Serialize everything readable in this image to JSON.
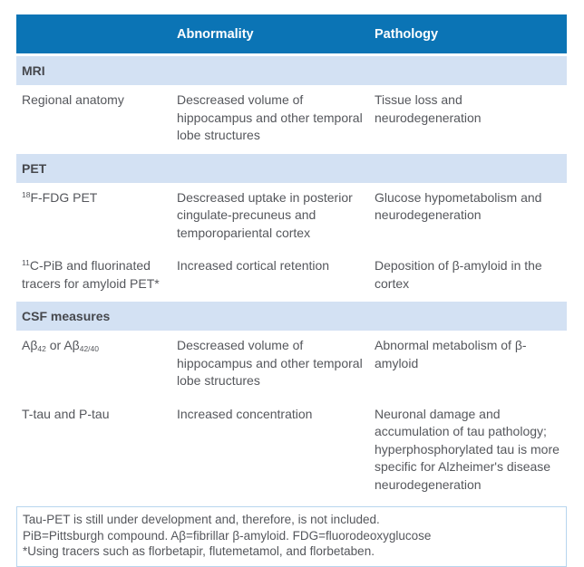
{
  "header": {
    "col_measure": "",
    "col_abnormality": "Abnormality",
    "col_pathology": "Pathology"
  },
  "sections": {
    "mri": {
      "title": "MRI"
    },
    "pet": {
      "title": "PET"
    },
    "csf": {
      "title": "CSF measures"
    }
  },
  "rows": {
    "regional": {
      "label": "Regional anatomy",
      "abnormality": "Descreased volume of hippocampus and other temporal lobe structures",
      "pathology": "Tissue loss and neurodegeneration"
    },
    "fdg": {
      "label_isotope": "18",
      "label": "F-FDG PET",
      "abnormality": "Descreased uptake in posterior cingulate-precuneus and temporopariental cortex",
      "pathology": "Glucose hypometabolism and neurodegeneration"
    },
    "pib": {
      "label_isotope": "11",
      "label": "C-PiB and fluorinated tracers for amyloid PET*",
      "abnormality": "Increased cortical retention",
      "pathology": "Deposition of β-amyloid in the cortex"
    },
    "abeta": {
      "label_parts": [
        "Aβ",
        "42",
        " or Aβ",
        "42/40"
      ],
      "abnormality": "Descreased volume of hippocampus and other temporal lobe structures",
      "pathology": "Abnormal metabolism of β-amyloid"
    },
    "tau": {
      "label": "T-tau and P-tau",
      "abnormality": "Increased concentration",
      "pathology": "Neuronal damage and accumulation of tau pathology; hyperphosphorylated tau is more specific for Alzheimer's disease neurodegeneration"
    }
  },
  "footnotes": {
    "line1": "Tau-PET is still under development and, therefore, is not included.",
    "line2": "PiB=Pittsburgh compound. Aβ=fibrillar β-amyloid. FDG=fluorodeoxyglucose",
    "line3": "*Using tracers such as florbetapir, flutemetamol, and florbetaben."
  },
  "colors": {
    "header_bar": "#0b74b5",
    "section_band": "#d3e1f3",
    "footnote_border": "#b7d5ee",
    "body_text": "#55575c",
    "section_text": "#46484d"
  }
}
